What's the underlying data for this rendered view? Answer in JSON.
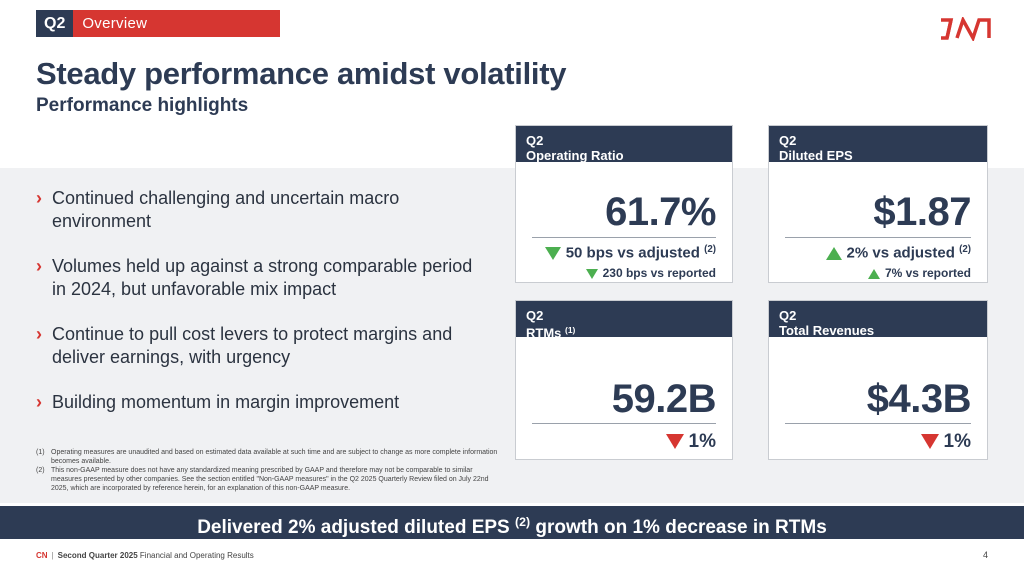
{
  "header": {
    "tag_quarter": "Q2",
    "tag_label": "Overview",
    "title": "Steady performance amidst volatility",
    "subtitle": "Performance highlights"
  },
  "bullets": [
    "Continued challenging and uncertain macro environment",
    "Volumes held up against a strong comparable period in 2024, but unfavorable mix impact",
    "Continue to pull cost levers to protect margins and deliver earnings, with urgency",
    "Building momentum in margin improvement"
  ],
  "footnotes": [
    {
      "num": "(1)",
      "text": "Operating measures are unaudited and based on estimated data available at such time and are subject to change as more complete information becomes available."
    },
    {
      "num": "(2)",
      "text": "This non-GAAP measure does not have any standardized meaning prescribed by GAAP and therefore may not be comparable to similar measures presented by other companies. See the section entitled \"Non-GAAP measures\" in the Q2 2025 Quarterly Review filed on July 22nd 2025, which are incorporated by reference herein, for an explanation of this non-GAAP measure."
    }
  ],
  "cards": {
    "operating_ratio": {
      "quarter": "Q2",
      "label": "Operating Ratio",
      "value": "61.7%",
      "line1": "50 bps vs adjusted",
      "line1_note": "(2)",
      "line2": "230 bps vs reported"
    },
    "diluted_eps": {
      "quarter": "Q2",
      "label": "Diluted EPS",
      "value": "$1.87",
      "line1": "2% vs adjusted",
      "line1_note": "(2)",
      "line2": "7% vs reported"
    },
    "rtms": {
      "quarter": "Q2",
      "label": "RTMs",
      "label_note": "(1)",
      "value": "59.2B",
      "change": "1%"
    },
    "total_revenues": {
      "quarter": "Q2",
      "label": "Total Revenues",
      "value": "$4.3B",
      "change": "1%"
    }
  },
  "banner": {
    "before": "Delivered 2% adjusted diluted EPS",
    "note": "(2)",
    "after": "growth on 1% decrease in RTMs"
  },
  "footer": {
    "brand": "CN",
    "separator": "|",
    "text_bold": "Second Quarter 2025",
    "text": "Financial and Operating Results",
    "page": "4"
  },
  "colors": {
    "navy": "#2d3b54",
    "red": "#d63631",
    "green": "#4caf50",
    "band": "#f0f1f3"
  },
  "icons": {
    "logo": "cn-logo",
    "bullet": "chevron-right-icon",
    "up": "triangle-up-green-icon",
    "down_green": "triangle-down-green-icon",
    "down_red": "triangle-down-red-icon"
  }
}
